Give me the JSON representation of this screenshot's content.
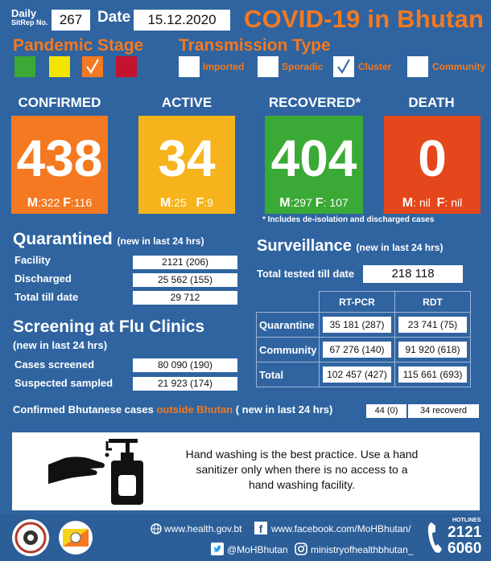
{
  "header": {
    "daily_label": "Daily",
    "sitrep_label": "SitRep No.",
    "sitrep_no": "267",
    "date_label": "Date",
    "date_value": "15.12.2020",
    "title": "COVID-19 in Bhutan"
  },
  "pandemic_stage": {
    "label": "Pandemic Stage",
    "colors": [
      "#3aa935",
      "#f3e500",
      "#f47920",
      "#c4122f"
    ],
    "checked_index": 2
  },
  "transmission": {
    "label": "Transmission Type",
    "types": [
      {
        "label": "Imported",
        "checked": false
      },
      {
        "label": "Sporadic",
        "checked": false
      },
      {
        "label": "Cluster",
        "checked": true
      },
      {
        "label": "Community",
        "checked": false
      }
    ]
  },
  "stats": {
    "confirmed": {
      "label": "CONFIRMED",
      "value": "438",
      "m_label": "M",
      "m_value": ":322",
      "f_label": "F",
      "f_value": ":116",
      "color": "#f47920"
    },
    "active": {
      "label": "ACTIVE",
      "value": "34",
      "m_label": "M",
      "m_value": ":25",
      "f_label": "F",
      "f_value": ":9",
      "color": "#f6b31b"
    },
    "recovered": {
      "label": "RECOVERED*",
      "value": "404",
      "m_label": "M",
      "m_value": ":297",
      "f_label": "F",
      "f_value": ": 107",
      "color": "#3aa935"
    },
    "death": {
      "label": "DEATH",
      "value": "0",
      "m_label": "M",
      "m_value": ": nil",
      "f_label": "F",
      "f_value": ": nil",
      "color": "#e4471b"
    }
  },
  "recovered_note": "* Includes de-isolation and discharged cases",
  "quarantined": {
    "title": "Quarantined",
    "subtitle": "(new in last 24 hrs)",
    "rows": [
      {
        "label": "Facility",
        "value": "2121 (206)"
      },
      {
        "label": "Discharged",
        "value": "25 562 (155)"
      },
      {
        "label": "Total till date",
        "value": "29 712"
      }
    ]
  },
  "screening": {
    "title": "Screening at Flu Clinics",
    "subtitle": "(new in last 24 hrs)",
    "rows": [
      {
        "label": "Cases screened",
        "value": "80 090 (190)"
      },
      {
        "label": "Suspected sampled",
        "value": "21 923 (174)"
      }
    ]
  },
  "surveillance": {
    "title": "Surveillance",
    "subtitle": "(new in last 24 hrs)",
    "total_tested_label": "Total tested till date",
    "total_tested_value": "218 118",
    "col_rtpcr": "RT-PCR",
    "col_rdt": "RDT",
    "rows": [
      {
        "label": "Quarantine",
        "rtpcr": "35 181 (287)",
        "rdt": "23 741 (75)"
      },
      {
        "label": "Community",
        "rtpcr": "67 276 (140)",
        "rdt": "91 920 (618)"
      },
      {
        "label": "Total",
        "rtpcr": "102 457 (427)",
        "rdt": "115 661 (693)"
      }
    ]
  },
  "outside": {
    "label_a": "Confirmed Bhutanese cases",
    "label_b": "outside Bhutan",
    "label_c": "( new in last 24 hrs)",
    "value_a": "44 (0)",
    "value_b": "34 recoverd"
  },
  "handwash": {
    "line1": "Hand washing is the best practice. Use a hand",
    "line2": "sanitizer only when there is no access to a",
    "line3": "hand washing facility."
  },
  "footer": {
    "website": "www.health.gov.bt",
    "facebook": "www.facebook.com/MoHBhutan/",
    "twitter": "@MoHBhutan",
    "instagram": "ministryofhealthbhutan_",
    "hotlines_label": "HOTLINES",
    "hotline_1": "2121",
    "hotline_2": "6060"
  }
}
